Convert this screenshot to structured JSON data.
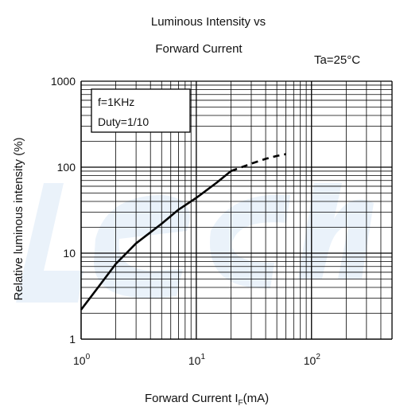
{
  "chart_data": {
    "type": "line",
    "title_line1": "Luminous Intensity vs",
    "title_line2": "Forward Current",
    "condition_label": "Ta=25°C",
    "xlabel_main": "Forward Current  I",
    "xlabel_subscript": "F",
    "xlabel_unit": "(mA)",
    "ylabel": "Relative luminous intensity   (%)",
    "x_scale": "log",
    "y_scale": "log",
    "xlim": [
      1,
      500
    ],
    "ylim": [
      1,
      1000
    ],
    "grid": true,
    "legend_box": {
      "line1": "f=1KHz",
      "line2": "Duty=1/10",
      "placement": "top-left"
    },
    "x_ticks": [
      {
        "value": 1,
        "base": "10",
        "exp": "0"
      },
      {
        "value": 10,
        "base": "10",
        "exp": "1"
      },
      {
        "value": 100,
        "base": "10",
        "exp": "2"
      }
    ],
    "y_ticks": [
      {
        "value": 1,
        "label": "1"
      },
      {
        "value": 10,
        "label": "10"
      },
      {
        "value": 100,
        "label": "100"
      },
      {
        "value": 1000,
        "label": "1000"
      }
    ],
    "series": [
      {
        "style": "solid",
        "x": [
          1,
          1.5,
          2,
          3,
          5,
          7,
          10,
          15,
          20
        ],
        "y": [
          2.2,
          4.5,
          7.5,
          13,
          22,
          32,
          44,
          66,
          90
        ]
      },
      {
        "style": "dashed",
        "x": [
          20,
          30,
          40,
          50,
          60
        ],
        "y": [
          90,
          110,
          125,
          135,
          142
        ]
      }
    ]
  }
}
